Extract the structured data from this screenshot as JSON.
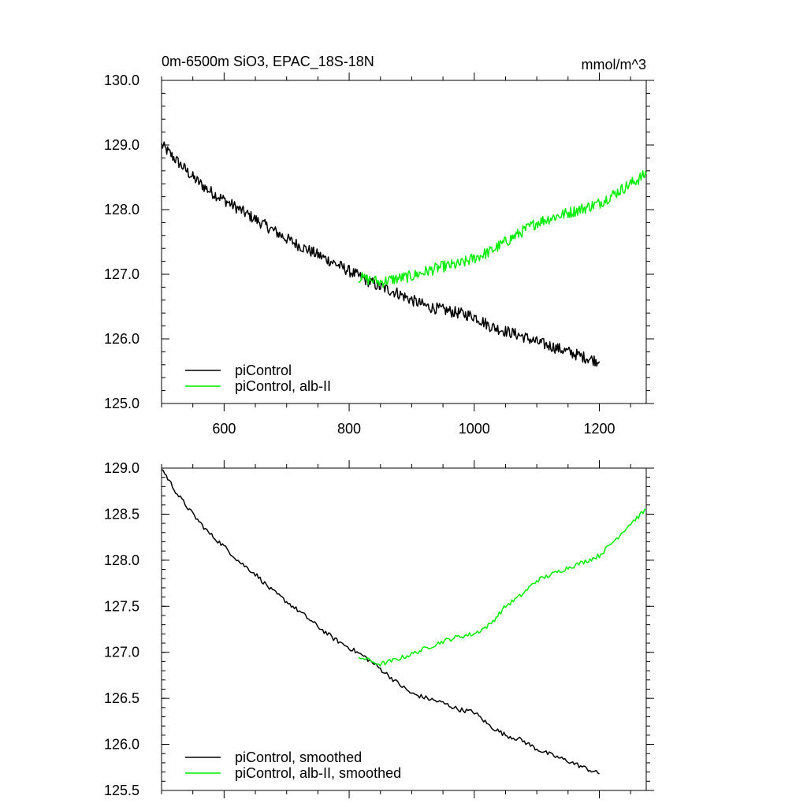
{
  "chart_data": [
    {
      "type": "line",
      "title": "0m-6500m SiO3, EPAC_18S-18N",
      "units": "mmol/m^3",
      "xlim": [
        500,
        1275
      ],
      "ylim": [
        125.0,
        130.0
      ],
      "x_ticks": [
        600,
        800,
        1000,
        1200
      ],
      "x_tick_labels": [
        "600",
        "800",
        "1000",
        "1200"
      ],
      "y_ticks": [
        125.0,
        126.0,
        127.0,
        128.0,
        129.0,
        130.0
      ],
      "y_tick_labels": [
        "125.0",
        "126.0",
        "127.0",
        "128.0",
        "129.0",
        "130.0"
      ],
      "legend_position": "bottom-left",
      "series": [
        {
          "name": "piControl",
          "color": "#000000",
          "x": [
            500,
            525,
            550,
            575,
            600,
            625,
            650,
            675,
            700,
            725,
            750,
            775,
            800,
            825,
            850,
            875,
            900,
            925,
            950,
            975,
            1000,
            1025,
            1050,
            1075,
            1100,
            1125,
            1150,
            1175,
            1200
          ],
          "values": [
            129.0,
            128.75,
            128.5,
            128.3,
            128.15,
            128.0,
            127.85,
            127.7,
            127.55,
            127.42,
            127.3,
            127.18,
            127.05,
            126.92,
            126.8,
            126.72,
            126.6,
            126.5,
            126.45,
            126.4,
            126.35,
            126.2,
            126.12,
            126.05,
            125.95,
            125.88,
            125.8,
            125.72,
            125.65
          ]
        },
        {
          "name": "piControl, alb-II",
          "color": "#00ee00",
          "x": [
            815,
            850,
            875,
            900,
            925,
            950,
            975,
            1000,
            1025,
            1050,
            1075,
            1100,
            1125,
            1150,
            1175,
            1200,
            1225,
            1250,
            1275
          ],
          "values": [
            126.95,
            126.88,
            126.93,
            126.97,
            127.05,
            127.12,
            127.15,
            127.25,
            127.35,
            127.5,
            127.65,
            127.8,
            127.88,
            127.95,
            128.02,
            128.1,
            128.25,
            128.4,
            128.55
          ]
        }
      ]
    },
    {
      "type": "line",
      "xlim": [
        500,
        1275
      ],
      "ylim": [
        125.5,
        129.0
      ],
      "x_ticks": [
        600,
        800,
        1000,
        1200
      ],
      "y_ticks": [
        125.5,
        126.0,
        126.5,
        127.0,
        127.5,
        128.0,
        128.5,
        129.0
      ],
      "y_tick_labels": [
        "125.5",
        "126.0",
        "126.5",
        "127.0",
        "127.5",
        "128.0",
        "128.5",
        "129.0"
      ],
      "legend_position": "bottom-left",
      "series": [
        {
          "name": "piControl, smoothed",
          "color": "#000000",
          "x": [
            500,
            525,
            550,
            575,
            600,
            625,
            650,
            675,
            700,
            725,
            750,
            775,
            800,
            825,
            850,
            875,
            900,
            925,
            950,
            975,
            1000,
            1025,
            1050,
            1075,
            1100,
            1125,
            1150,
            1175,
            1200
          ],
          "values": [
            129.0,
            128.72,
            128.5,
            128.3,
            128.15,
            127.98,
            127.85,
            127.68,
            127.55,
            127.42,
            127.28,
            127.15,
            127.05,
            126.95,
            126.82,
            126.68,
            126.55,
            126.5,
            126.45,
            126.38,
            126.35,
            126.2,
            126.1,
            126.05,
            125.95,
            125.88,
            125.82,
            125.75,
            125.68
          ]
        },
        {
          "name": "piControl, alb-II, smoothed",
          "color": "#00ee00",
          "x": [
            815,
            850,
            875,
            900,
            925,
            950,
            975,
            1000,
            1025,
            1050,
            1075,
            1100,
            1125,
            1150,
            1175,
            1200,
            1225,
            1250,
            1275
          ],
          "values": [
            126.95,
            126.87,
            126.92,
            126.98,
            127.05,
            127.12,
            127.17,
            127.2,
            127.3,
            127.5,
            127.62,
            127.78,
            127.85,
            127.92,
            127.98,
            128.05,
            128.22,
            128.4,
            128.55
          ]
        }
      ]
    }
  ]
}
